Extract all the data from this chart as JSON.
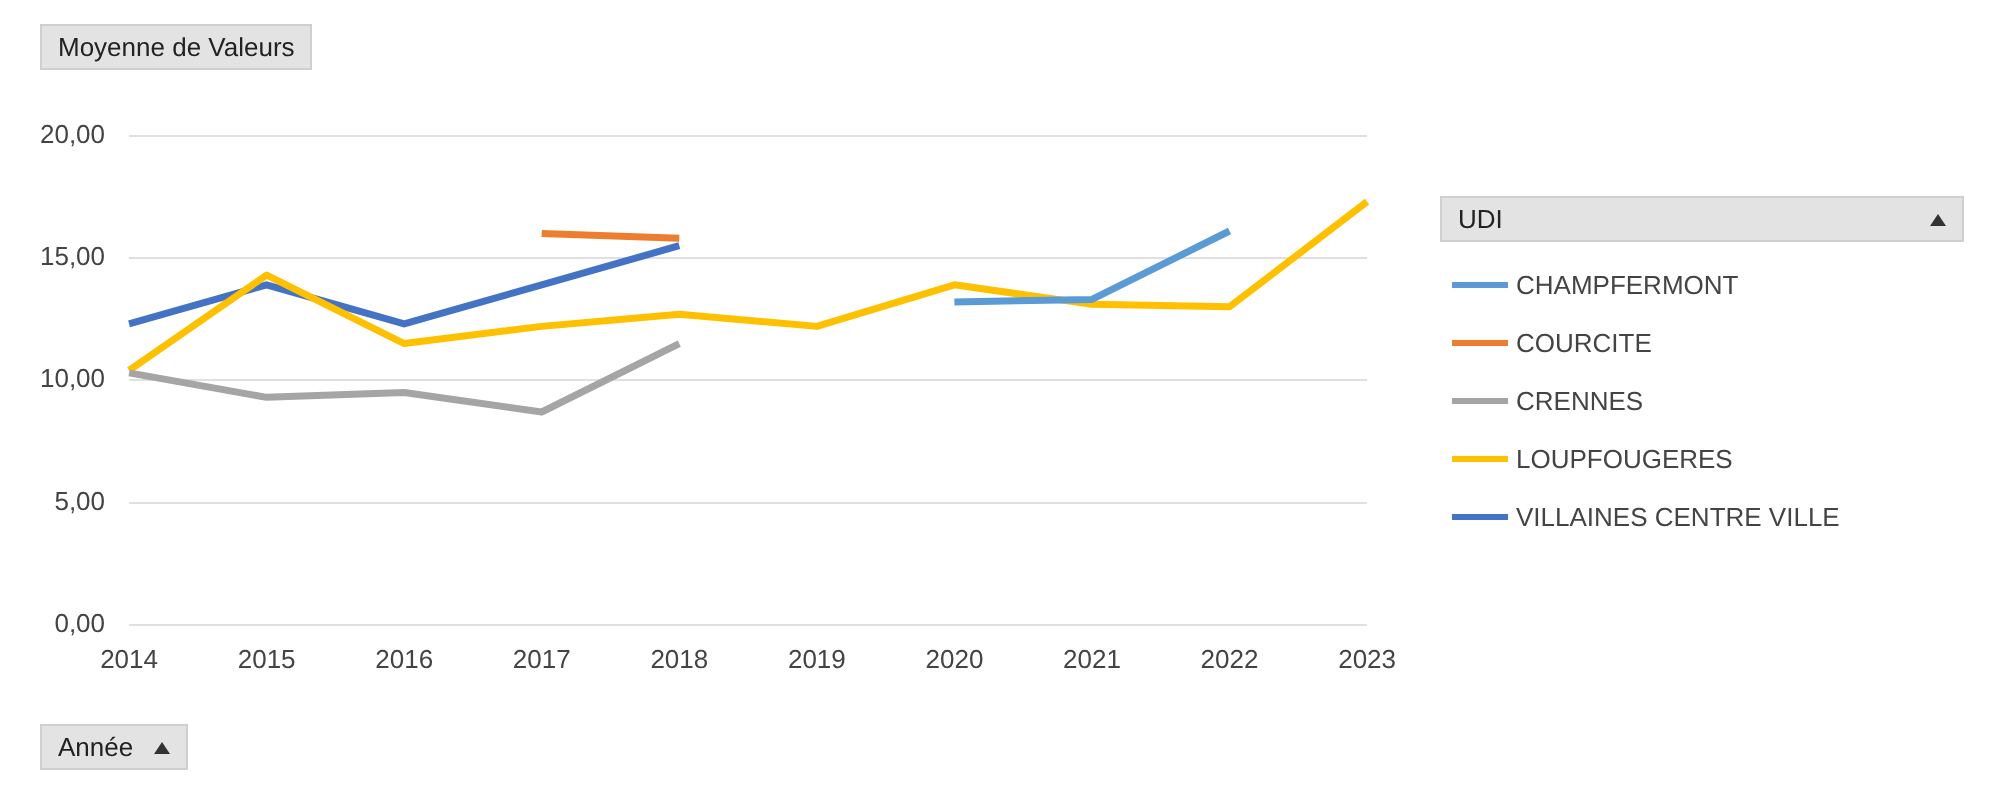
{
  "chart_data": {
    "type": "line",
    "ylabel": "Moyenne de Valeurs",
    "xlabel": "Année",
    "legend_title": "UDI",
    "categories": [
      "2014",
      "2015",
      "2016",
      "2017",
      "2018",
      "2019",
      "2020",
      "2021",
      "2022",
      "2023"
    ],
    "series": [
      {
        "name": "CHAMPFERMONT",
        "color": "#5b9bd5",
        "values": [
          null,
          null,
          null,
          null,
          null,
          null,
          13.2,
          13.3,
          16.1,
          null
        ]
      },
      {
        "name": "COURCITE",
        "color": "#ed7d31",
        "values": [
          null,
          null,
          null,
          16.0,
          15.8,
          null,
          null,
          null,
          null,
          null
        ]
      },
      {
        "name": "CRENNES",
        "color": "#a5a5a5",
        "values": [
          10.3,
          9.3,
          9.5,
          8.7,
          11.5,
          null,
          null,
          null,
          null,
          null
        ]
      },
      {
        "name": "LOUPFOUGERES",
        "color": "#ffc000",
        "values": [
          10.4,
          14.3,
          11.5,
          12.2,
          12.7,
          12.2,
          13.9,
          13.1,
          13.0,
          17.3
        ]
      },
      {
        "name": "VILLAINES CENTRE VILLE",
        "color": "#4472c4",
        "values": [
          12.3,
          13.9,
          12.3,
          13.9,
          15.5,
          null,
          null,
          null,
          null,
          null
        ]
      }
    ],
    "ylim": [
      0,
      20
    ],
    "yticks": [
      {
        "value": 0,
        "label": "0,00"
      },
      {
        "value": 5,
        "label": "5,00"
      },
      {
        "value": 10,
        "label": "10,00"
      },
      {
        "value": 15,
        "label": "15,00"
      },
      {
        "value": 20,
        "label": "20,00"
      }
    ],
    "grid": "y",
    "legend": "right",
    "marker": "none",
    "line_style": "solid"
  }
}
